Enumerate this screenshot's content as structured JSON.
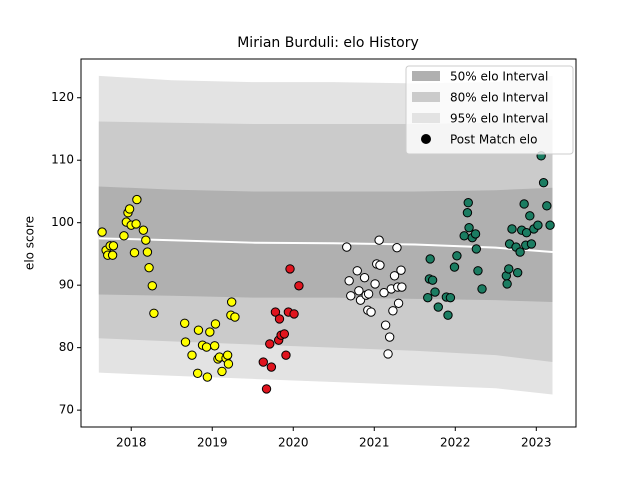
{
  "chart_data": {
    "type": "scatter",
    "title": "Mirian Burduli: elo History",
    "y_label": "elo score",
    "xlim": [
      2017.38,
      2023.49
    ],
    "ylim": [
      67.3,
      126.2
    ],
    "xticks": [
      2018,
      2019,
      2020,
      2021,
      2022,
      2023
    ],
    "yticks": [
      70,
      80,
      90,
      100,
      110,
      120
    ],
    "band_x": [
      2017.6,
      2018.5,
      2019.5,
      2020.5,
      2021.5,
      2022.5,
      2023.2
    ],
    "bands": [
      {
        "name": "50% elo Interval",
        "color": "#b0b0b0",
        "upper": [
          105.8,
          105.3,
          105,
          105,
          105,
          105.2,
          105.6
        ],
        "lower": [
          88.5,
          88.3,
          88,
          88,
          87.8,
          87.6,
          87.3
        ]
      },
      {
        "name": "80% elo Interval",
        "color": "#cbcbcb",
        "upper": [
          116.2,
          116,
          115.8,
          115.8,
          115.8,
          116,
          116.5
        ],
        "lower": [
          81.5,
          81,
          80.5,
          80,
          79.5,
          78.8,
          77.7
        ]
      },
      {
        "name": "95% elo Interval",
        "color": "#e3e3e3",
        "upper": [
          123.5,
          122.8,
          122.5,
          122.5,
          122.3,
          122.5,
          123.5
        ],
        "lower": [
          76,
          75.5,
          75,
          74.5,
          74,
          73.5,
          72.5
        ]
      }
    ],
    "mean": {
      "color": "#ffffff",
      "values": [
        97.5,
        97.2,
        96.8,
        96.7,
        96.5,
        96,
        95.3
      ]
    },
    "points": {
      "name": "Post Match elo",
      "legend_color": "#000000",
      "groups": [
        {
          "color": "#ffff00",
          "x": [
            2017.64,
            2017.69,
            2017.74,
            2017.71,
            2017.77,
            2017.78,
            2017.91,
            2017.94,
            2017.96,
            2017.98,
            2018,
            2018.06,
            2018.07,
            2018.04,
            2018.15,
            2018.18,
            2018.2,
            2018.22,
            2018.26,
            2018.28,
            2018.66,
            2018.67,
            2018.75,
            2018.82,
            2018.83,
            2018.88,
            2018.93,
            2018.94,
            2018.97,
            2019.03,
            2019.04,
            2019.07,
            2019.09,
            2019.12,
            2019.17,
            2019.19,
            2019.2,
            2019.23,
            2019.24,
            2019.28
          ],
          "values": [
            98.5,
            95.6,
            96.3,
            94.8,
            94.8,
            96.3,
            97.9,
            100.1,
            101.6,
            102.2,
            99.6,
            99.8,
            103.7,
            95.2,
            98.8,
            97.2,
            95.3,
            92.8,
            89.9,
            85.5,
            83.9,
            80.9,
            78.8,
            75.9,
            82.8,
            80.4,
            80.1,
            75.3,
            82.5,
            80.3,
            83.8,
            78.2,
            78.5,
            76.2,
            78.3,
            78.8,
            77.4,
            85.2,
            87.3,
            84.9
          ]
        },
        {
          "color": "#e0141e",
          "x": [
            2019.63,
            2019.67,
            2019.71,
            2019.73,
            2019.78,
            2019.82,
            2019.83,
            2019.85,
            2019.89,
            2019.91,
            2019.94,
            2019.96,
            2020.01,
            2020.07
          ],
          "values": [
            77.7,
            73.4,
            80.6,
            76.9,
            85.7,
            81.2,
            84.6,
            82,
            82.2,
            78.8,
            85.7,
            92.6,
            85.4,
            89.9
          ]
        },
        {
          "color": "#ffffff",
          "x": [
            2020.66,
            2020.69,
            2020.71,
            2020.79,
            2020.81,
            2020.83,
            2020.88,
            2020.9,
            2020.92,
            2020.93,
            2020.96,
            2021.01,
            2021.03,
            2021.06,
            2021.07,
            2021.12,
            2021.14,
            2021.17,
            2021.19,
            2021.21,
            2021.23,
            2021.25,
            2021.28,
            2021.29,
            2021.3,
            2021.33,
            2021.34
          ],
          "values": [
            96.1,
            90.7,
            88.3,
            92.3,
            89.1,
            87.6,
            91.2,
            88.4,
            86,
            88.6,
            85.7,
            90.2,
            93.4,
            97.2,
            93.2,
            88.8,
            83.6,
            79,
            81.7,
            89.4,
            85.9,
            91.5,
            96,
            89.7,
            87.1,
            92.4,
            89.7
          ]
        },
        {
          "color": "#1b7d62",
          "x": [
            2021.66,
            2021.68,
            2021.69,
            2021.72,
            2021.75,
            2021.79,
            2021.89,
            2021.91,
            2021.94,
            2021.99,
            2022.02,
            2022.11,
            2022.15,
            2022.16,
            2022.17,
            2022.21,
            2022.25,
            2022.26,
            2022.28,
            2022.33,
            2022.63,
            2022.64,
            2022.66,
            2022.67,
            2022.7,
            2022.75,
            2022.77,
            2022.8,
            2022.82,
            2022.85,
            2022.87,
            2022.88,
            2022.92,
            2022.94,
            2022.97,
            2023.02,
            2023.06,
            2023.09,
            2023.13,
            2023.17
          ],
          "values": [
            88,
            91,
            94.2,
            90.8,
            88.9,
            86.5,
            88.1,
            85.2,
            88,
            92.9,
            94.7,
            97.9,
            101.6,
            103.2,
            99.2,
            97.6,
            98.2,
            95.8,
            92.3,
            89.4,
            91.5,
            90.2,
            92.6,
            96.6,
            99,
            96.1,
            92,
            95.3,
            98.8,
            103,
            96.4,
            98.4,
            101.1,
            96.6,
            99,
            99.6,
            110.7,
            106.4,
            102.7,
            99.6
          ]
        }
      ]
    },
    "legend": "upper right"
  }
}
